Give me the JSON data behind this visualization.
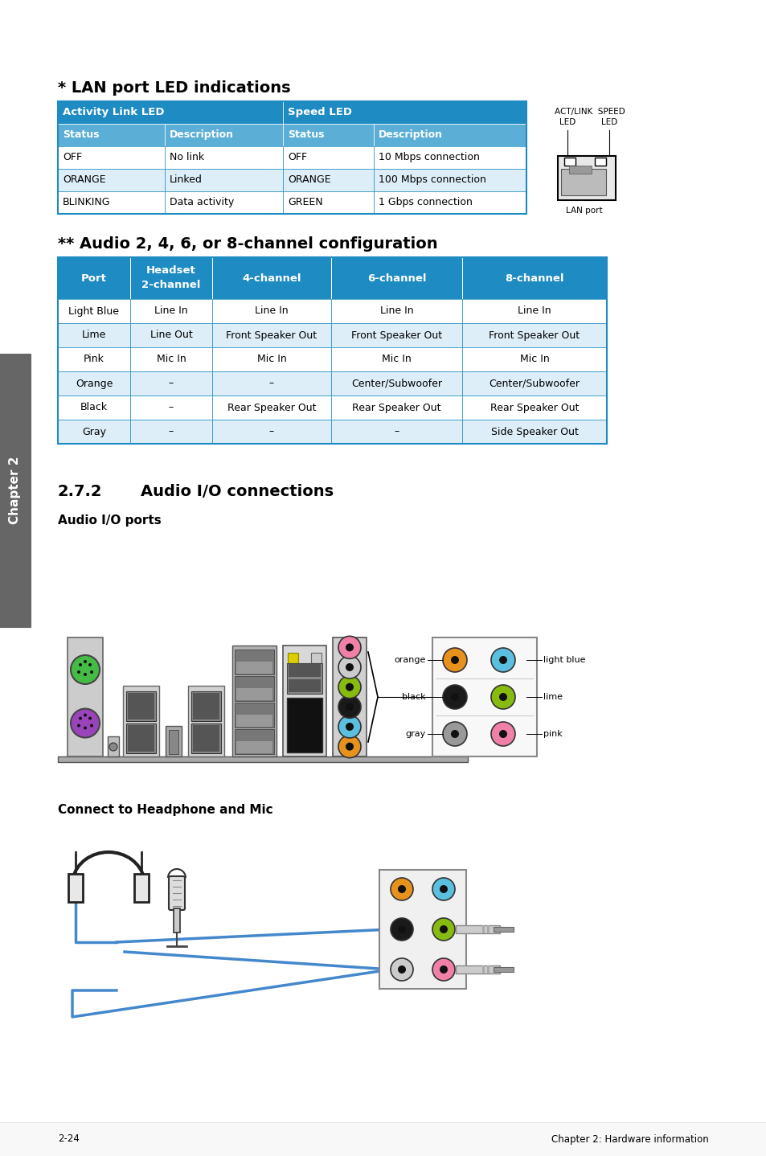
{
  "page_bg": "#ffffff",
  "title1": "* LAN port LED indications",
  "title2": "** Audio 2, 4, 6, or 8-channel configuration",
  "sec_num": "2.7.2",
  "sec_title": "Audio I/O connections",
  "sub_title1": "Audio I/O ports",
  "sub_title2": "Connect to Headphone and Mic",
  "header_bg": "#1e8bc3",
  "subheader_bg": "#5bafd6",
  "row_bg_white": "#ffffff",
  "row_bg_light": "#ddeef8",
  "table_border": "#1e8bc3",
  "sidebar_bg": "#666666",
  "chapter_label": "Chapter 2",
  "footer_left": "2-24",
  "footer_right": "Chapter 2: Hardware information",
  "lan_headers": [
    "Activity Link LED",
    "Speed LED"
  ],
  "lan_subheaders": [
    "Status",
    "Description",
    "Status",
    "Description"
  ],
  "lan_rows": [
    [
      "OFF",
      "No link",
      "OFF",
      "10 Mbps connection"
    ],
    [
      "ORANGE",
      "Linked",
      "ORANGE",
      "100 Mbps connection"
    ],
    [
      "BLINKING",
      "Data activity",
      "GREEN",
      "1 Gbps connection"
    ]
  ],
  "audio_headers": [
    "Port",
    "Headset\n2-channel",
    "4-channel",
    "6-channel",
    "8-channel"
  ],
  "audio_rows": [
    [
      "Light Blue",
      "Line In",
      "Line In",
      "Line In",
      "Line In"
    ],
    [
      "Lime",
      "Line Out",
      "Front Speaker Out",
      "Front Speaker Out",
      "Front Speaker Out"
    ],
    [
      "Pink",
      "Mic In",
      "Mic In",
      "Mic In",
      "Mic In"
    ],
    [
      "Orange",
      "–",
      "–",
      "Center/Subwoofer",
      "Center/Subwoofer"
    ],
    [
      "Black",
      "–",
      "Rear Speaker Out",
      "Rear Speaker Out",
      "Rear Speaker Out"
    ],
    [
      "Gray",
      "–",
      "–",
      "–",
      "Side Speaker Out"
    ]
  ],
  "col_orange": "#e8921e",
  "col_lightblue": "#5bbfdf",
  "col_black": "#1a1a1a",
  "col_lime": "#88bb10",
  "col_gray": "#999999",
  "col_pink": "#f080a8",
  "col_white_jack": "#cccccc",
  "col_yellow": "#ddcc00",
  "col_blue_cable": "#4488cc"
}
